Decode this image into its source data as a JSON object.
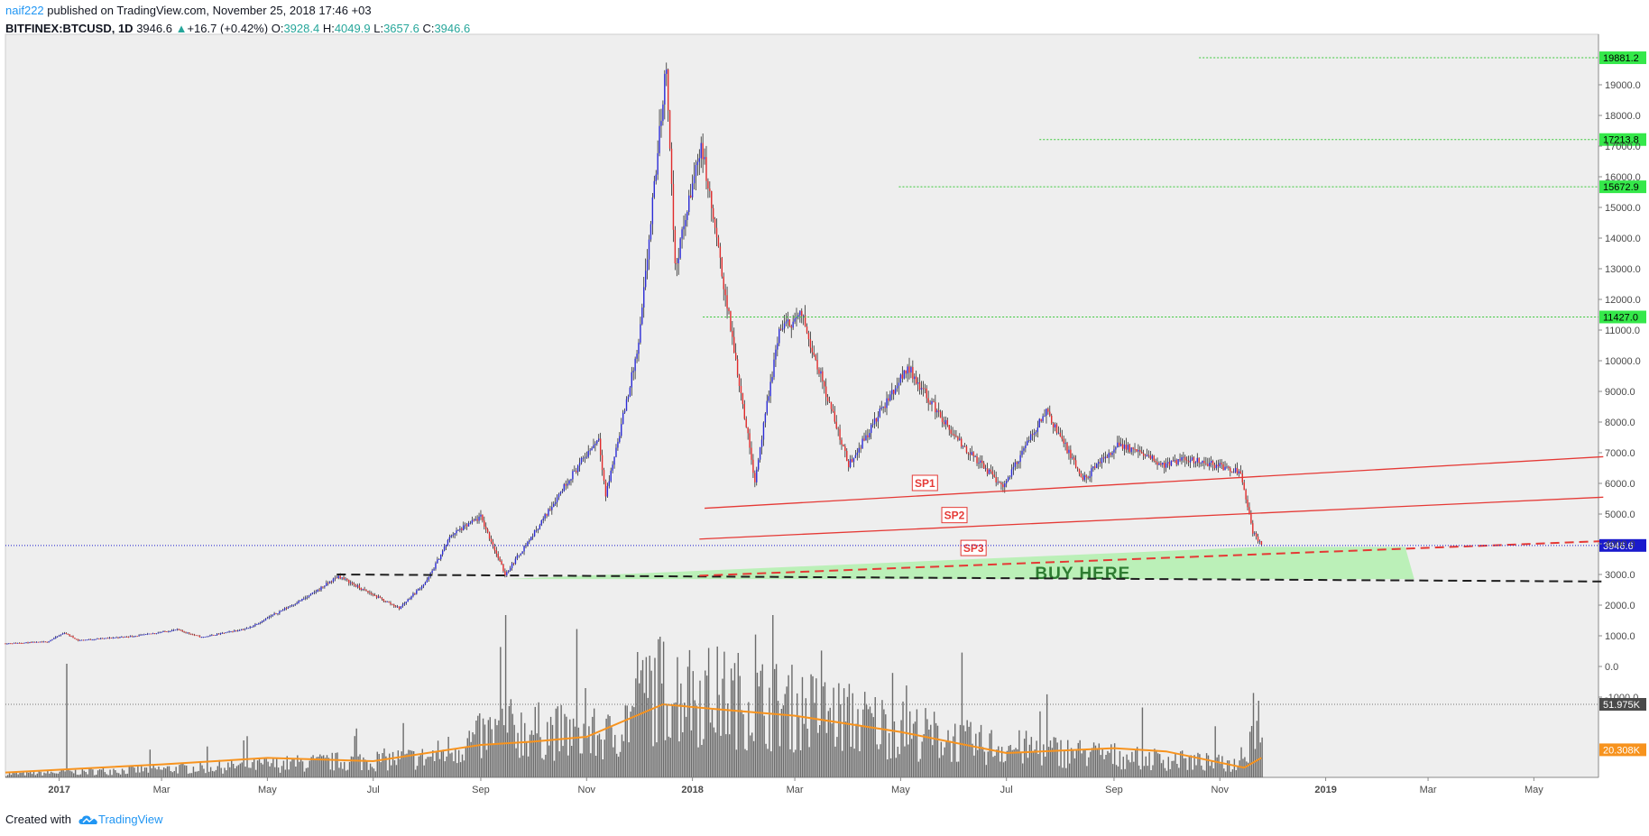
{
  "header": {
    "author": "naif222",
    "published": "published on TradingView.com, November 25, 2018 17:46 +03",
    "symbol": "BITFINEX:BTCUSD, 1D",
    "last": "3946.6",
    "change": "+16.7 (+0.42%)",
    "o_label": "O:",
    "o_value": "3928.4",
    "h_label": "H:",
    "h_value": "4049.9",
    "l_label": "L:",
    "l_value": "3657.6",
    "c_label": "C:",
    "c_value": "3946.6"
  },
  "footer": {
    "created_with": "Created with",
    "brand": "TradingView"
  },
  "colors": {
    "background": "#eeeeee",
    "candle_up": "#2b2bd6",
    "candle_down": "#e02b2b",
    "trendline": "#e53935",
    "support_dash": "#1e1e1e",
    "zone": "#b7efb4",
    "level_line": "#39c839",
    "level_badge": "#35e84a",
    "price_badge": "#1a1acd",
    "volume": "#6b6b6b",
    "volume_ma": "#f7931e",
    "volume_badge": "#f7931e",
    "volume_last_badge": "#4a4a4a"
  },
  "chart_data": {
    "type": "candlestick",
    "y_scale": "log",
    "y_ticks": [
      "-1000.0",
      "0.0",
      "1000.0",
      "2000.0",
      "3000.0",
      "4000.0",
      "5000.0",
      "6000.0",
      "7000.0",
      "8000.0",
      "9000.0",
      "10000.0",
      "11000.0",
      "12000.0",
      "13000.0",
      "14000.0",
      "15000.0",
      "16000.0",
      "17000.0",
      "18000.0",
      "19000.0"
    ],
    "x_ticks": [
      "2017",
      "Mar",
      "May",
      "Jul",
      "Sep",
      "Nov",
      "2018",
      "Mar",
      "May",
      "Jul",
      "Sep",
      "Nov",
      "2019",
      "Mar",
      "May"
    ],
    "price_path": [
      [
        "2016-12-01",
        750
      ],
      [
        "2016-12-25",
        800
      ],
      [
        "2017-01-04",
        1100
      ],
      [
        "2017-01-12",
        850
      ],
      [
        "2017-02-15",
        1000
      ],
      [
        "2017-03-10",
        1200
      ],
      [
        "2017-03-24",
        950
      ],
      [
        "2017-04-20",
        1250
      ],
      [
        "2017-05-25",
        2300
      ],
      [
        "2017-06-11",
        2950
      ],
      [
        "2017-06-25",
        2500
      ],
      [
        "2017-07-16",
        1900
      ],
      [
        "2017-08-01",
        2800
      ],
      [
        "2017-08-15",
        4300
      ],
      [
        "2017-09-01",
        4900
      ],
      [
        "2017-09-15",
        3000
      ],
      [
        "2017-10-01",
        4300
      ],
      [
        "2017-10-20",
        6000
      ],
      [
        "2017-11-08",
        7500
      ],
      [
        "2017-11-12",
        5600
      ],
      [
        "2017-12-01",
        10500
      ],
      [
        "2017-12-17",
        19700
      ],
      [
        "2017-12-22",
        13000
      ],
      [
        "2018-01-06",
        17100
      ],
      [
        "2018-02-06",
        6100
      ],
      [
        "2018-02-20",
        11000
      ],
      [
        "2018-03-05",
        11500
      ],
      [
        "2018-04-01",
        6600
      ],
      [
        "2018-05-05",
        9800
      ],
      [
        "2018-06-01",
        7500
      ],
      [
        "2018-06-29",
        5900
      ],
      [
        "2018-07-24",
        8400
      ],
      [
        "2018-08-14",
        6100
      ],
      [
        "2018-09-04",
        7300
      ],
      [
        "2018-09-30",
        6600
      ],
      [
        "2018-10-15",
        6800
      ],
      [
        "2018-11-13",
        6400
      ],
      [
        "2018-11-20",
        4400
      ],
      [
        "2018-11-25",
        3946.6
      ]
    ],
    "volume_path": [
      [
        "2016-12-01",
        0.02
      ],
      [
        "2017-03-01",
        0.05
      ],
      [
        "2017-08-01",
        0.12
      ],
      [
        "2017-09-15",
        0.3
      ],
      [
        "2017-11-15",
        0.25
      ],
      [
        "2017-12-10",
        0.55
      ],
      [
        "2018-01-15",
        0.5
      ],
      [
        "2018-03-15",
        0.4
      ],
      [
        "2018-06-15",
        0.2
      ],
      [
        "2018-09-15",
        0.12
      ],
      [
        "2018-11-10",
        0.08
      ],
      [
        "2018-11-25",
        0.4
      ]
    ],
    "volume_spikes": [
      [
        "2017-01-05",
        0.7
      ],
      [
        "2017-09-15",
        1.0
      ],
      [
        "2017-12-07",
        0.75
      ],
      [
        "2018-02-06",
        0.88
      ],
      [
        "2018-11-20",
        0.52
      ]
    ],
    "volume_ma": [
      [
        "2016-12-01",
        0.03
      ],
      [
        "2017-03-01",
        0.08
      ],
      [
        "2017-05-01",
        0.12
      ],
      [
        "2017-07-01",
        0.1
      ],
      [
        "2017-09-01",
        0.2
      ],
      [
        "2017-10-01",
        0.22
      ],
      [
        "2017-11-01",
        0.25
      ],
      [
        "2017-12-15",
        0.45
      ],
      [
        "2018-01-15",
        0.42
      ],
      [
        "2018-03-01",
        0.38
      ],
      [
        "2018-05-01",
        0.28
      ],
      [
        "2018-07-01",
        0.15
      ],
      [
        "2018-09-01",
        0.18
      ],
      [
        "2018-10-01",
        0.16
      ],
      [
        "2018-11-15",
        0.06
      ],
      [
        "2018-11-25",
        0.12
      ]
    ],
    "horizontal_levels": [
      {
        "label": "19881.2",
        "value": 19881.2,
        "from": "2018-10-20"
      },
      {
        "label": "17213.8",
        "value": 17213.8,
        "from": "2018-07-20"
      },
      {
        "label": "15672.9",
        "value": 15672.9,
        "from": "2018-04-30"
      },
      {
        "label": "11427.0",
        "value": 11427.0,
        "from": "2018-01-07"
      }
    ],
    "current_price": {
      "label": "3946.6",
      "value": 3946.6
    },
    "trendlines": [
      {
        "name": "SP1",
        "from": [
          "2018-01-08",
          5190
        ],
        "to": [
          "2019-06-10",
          6870
        ]
      },
      {
        "name": "SP2",
        "from": [
          "2018-01-05",
          4160
        ],
        "to": [
          "2019-06-10",
          5550
        ]
      },
      {
        "name": "SP3",
        "from": [
          "2018-01-05",
          2960
        ],
        "to": [
          "2019-06-10",
          4090
        ],
        "dashed": true
      }
    ],
    "support_line": {
      "from": [
        "2017-06-10",
        3000
      ],
      "to": [
        "2019-06-10",
        2770
      ]
    },
    "zone": {
      "label": "BUY HERE",
      "from": "2017-09-15",
      "to": "2019-02-21",
      "top": 3900,
      "bottom": 2850
    },
    "volume_badges": [
      {
        "label": "51.975K",
        "level": 0.45
      },
      {
        "label": "20.308K",
        "level": 0.17
      }
    ]
  }
}
